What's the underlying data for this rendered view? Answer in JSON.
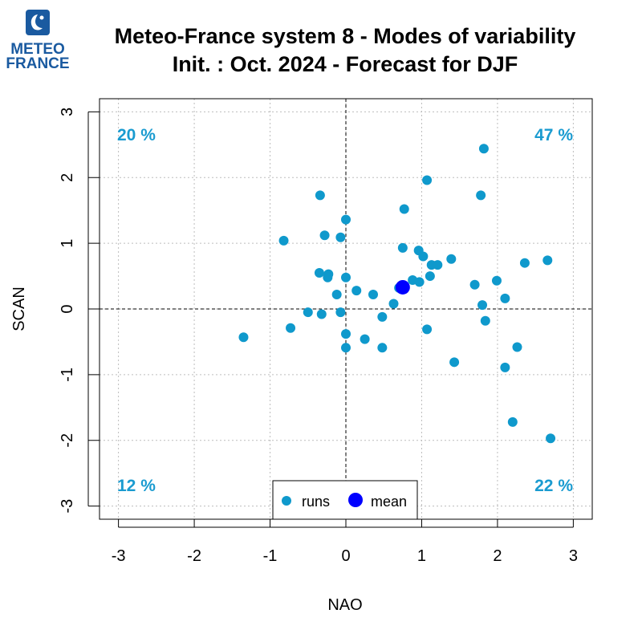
{
  "logo": {
    "line1": "METEO",
    "line2": "FRANCE",
    "color": "#1a5aa0"
  },
  "chart_data": {
    "type": "scatter",
    "title": "Meteo-France system 8 - Modes of variability",
    "subtitle": "Init. : Oct. 2024 - Forecast for DJF",
    "xlabel": "NAO",
    "ylabel": "SCAN",
    "xlim": [
      -3.25,
      3.25
    ],
    "ylim": [
      -3.2,
      3.2
    ],
    "xticks": [
      "-3",
      "-2",
      "-1",
      "0",
      "1",
      "2",
      "3"
    ],
    "yticks": [
      "-3",
      "-2",
      "-1",
      "0",
      "1",
      "2",
      "3"
    ],
    "grid": true,
    "quadrants": {
      "top_left": "20 %",
      "top_right": "47 %",
      "bottom_left": "12 %",
      "bottom_right": "22 %",
      "color": "#1a9bd0"
    },
    "legend": {
      "placement": "bottom-center",
      "entries": [
        {
          "label": "runs",
          "color": "#0f99cc"
        },
        {
          "label": "mean",
          "color": "#0000ff"
        }
      ]
    },
    "series": [
      {
        "name": "runs",
        "color": "#0f99cc",
        "points": [
          [
            1.82,
            2.44
          ],
          [
            1.07,
            1.96
          ],
          [
            -0.34,
            1.73
          ],
          [
            1.78,
            1.73
          ],
          [
            0.77,
            1.52
          ],
          [
            0.0,
            1.36
          ],
          [
            -0.28,
            1.12
          ],
          [
            -0.07,
            1.09
          ],
          [
            -0.82,
            1.04
          ],
          [
            0.75,
            0.93
          ],
          [
            0.96,
            0.89
          ],
          [
            1.02,
            0.8
          ],
          [
            1.39,
            0.76
          ],
          [
            2.66,
            0.74
          ],
          [
            1.13,
            0.67
          ],
          [
            1.21,
            0.67
          ],
          [
            2.36,
            0.7
          ],
          [
            -0.35,
            0.55
          ],
          [
            -0.23,
            0.53
          ],
          [
            -0.24,
            0.48
          ],
          [
            0.0,
            0.48
          ],
          [
            1.11,
            0.5
          ],
          [
            0.88,
            0.44
          ],
          [
            0.97,
            0.41
          ],
          [
            1.99,
            0.43
          ],
          [
            1.7,
            0.37
          ],
          [
            0.14,
            0.28
          ],
          [
            0.36,
            0.22
          ],
          [
            -0.12,
            0.22
          ],
          [
            0.7,
            0.32
          ],
          [
            2.1,
            0.16
          ],
          [
            0.63,
            0.08
          ],
          [
            1.8,
            0.06
          ],
          [
            -0.5,
            -0.05
          ],
          [
            -0.07,
            -0.05
          ],
          [
            -0.32,
            -0.08
          ],
          [
            0.48,
            -0.12
          ],
          [
            1.84,
            -0.18
          ],
          [
            -0.73,
            -0.29
          ],
          [
            1.07,
            -0.31
          ],
          [
            -1.35,
            -0.43
          ],
          [
            0.0,
            -0.38
          ],
          [
            0.25,
            -0.46
          ],
          [
            0.48,
            -0.59
          ],
          [
            0.0,
            -0.59
          ],
          [
            2.26,
            -0.58
          ],
          [
            1.43,
            -0.81
          ],
          [
            2.1,
            -0.89
          ],
          [
            2.2,
            -1.72
          ],
          [
            2.7,
            -1.97
          ]
        ]
      },
      {
        "name": "mean",
        "color": "#0000ff",
        "points": [
          [
            0.75,
            0.33
          ]
        ]
      }
    ]
  }
}
